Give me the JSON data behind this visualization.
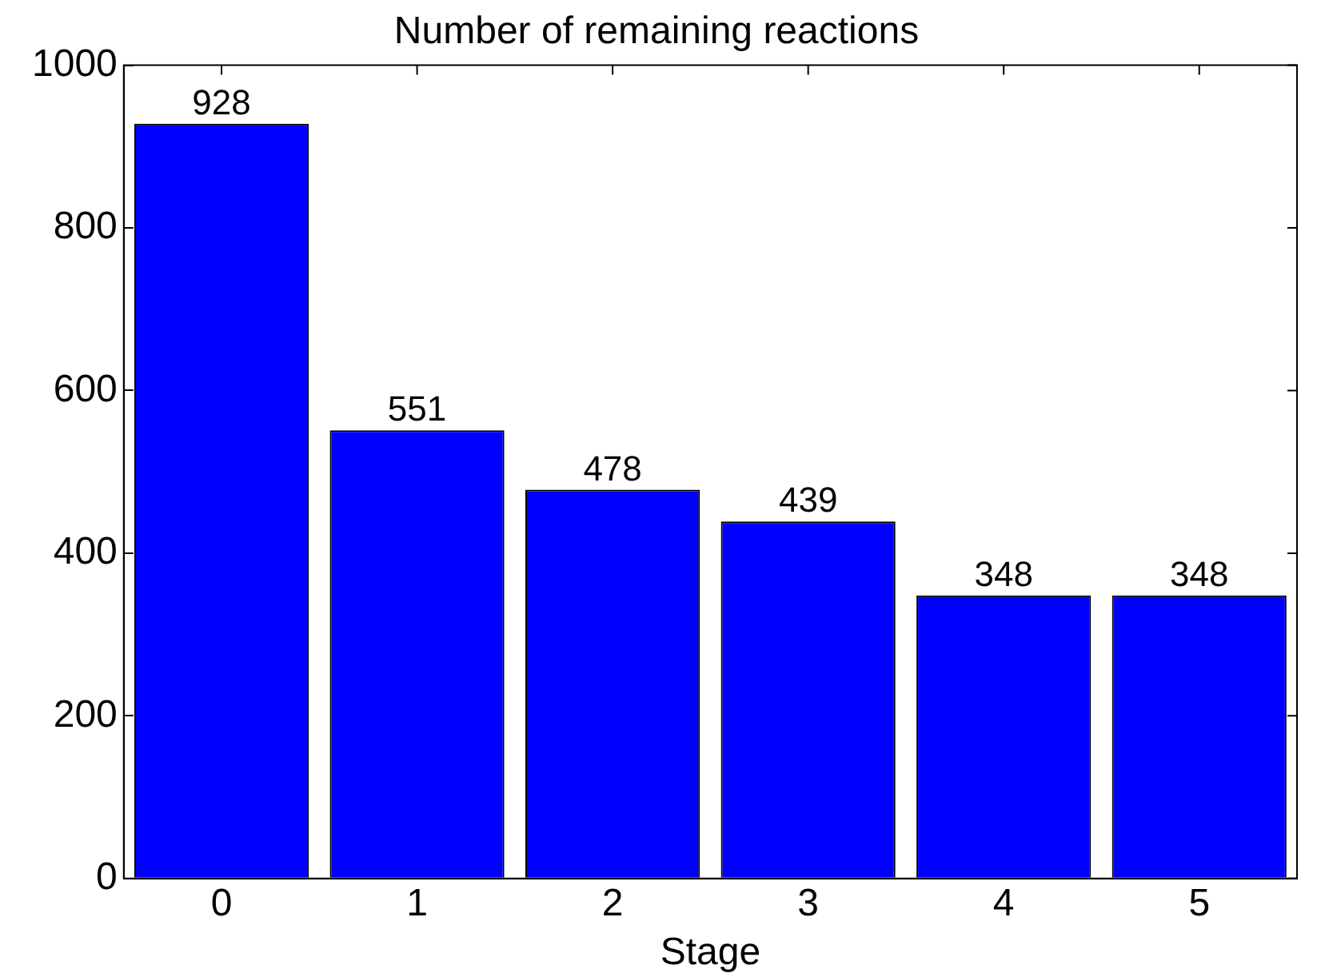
{
  "chart_data": {
    "type": "bar",
    "title": "Number of remaining reactions",
    "xlabel": "Stage",
    "categories": [
      "0",
      "1",
      "2",
      "3",
      "4",
      "5"
    ],
    "values": [
      928,
      551,
      478,
      439,
      348,
      348
    ],
    "color": "#0000ff",
    "ylim": [
      0,
      1000
    ],
    "yticks": [
      0,
      200,
      400,
      600,
      800,
      1000
    ],
    "grid": false,
    "legend": false,
    "data_labels": true
  }
}
